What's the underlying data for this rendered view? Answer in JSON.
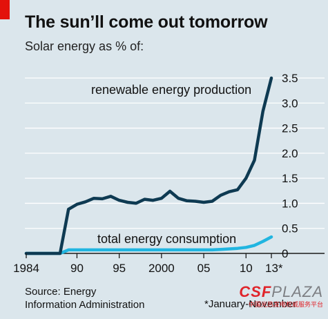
{
  "header": {
    "title": "The sun’ll come out tomorrow",
    "subtitle": "Solar energy as % of:"
  },
  "source": {
    "line1": "Source: Energy",
    "line2": "Information Administration"
  },
  "footnote": "*January-November",
  "watermark": {
    "logo_main": "CSF",
    "logo_second": "PLAZA",
    "subtext": "中国光热发电权威服务平台"
  },
  "colors": {
    "background": "#dbe6ec",
    "renewable_line": "#0e3a52",
    "consumption_line": "#21b5e0",
    "grid": "#ffffff",
    "accent": "#e3120b"
  },
  "chart_data": {
    "type": "line",
    "title": "The sun’ll come out tomorrow",
    "subtitle": "Solar energy as % of:",
    "xlabel": "",
    "ylabel": "",
    "xlim": [
      1984,
      2013
    ],
    "ylim": [
      0,
      3.5
    ],
    "x_ticks": [
      1984,
      1990,
      1995,
      2000,
      2005,
      2010,
      2013
    ],
    "x_tick_labels": [
      "1984",
      "90",
      "95",
      "2000",
      "05",
      "10",
      "13*"
    ],
    "y_ticks": [
      0,
      0.5,
      1.0,
      1.5,
      2.0,
      2.5,
      3.0,
      3.5
    ],
    "y_tick_labels": [
      "0",
      "0.5",
      "1.0",
      "1.5",
      "2.0",
      "2.5",
      "3.0",
      "3.5"
    ],
    "grid": "horizontal",
    "x": [
      1984,
      1985,
      1986,
      1987,
      1988,
      1989,
      1990,
      1991,
      1992,
      1993,
      1994,
      1995,
      1996,
      1997,
      1998,
      1999,
      2000,
      2001,
      2002,
      2003,
      2004,
      2005,
      2006,
      2007,
      2008,
      2009,
      2010,
      2011,
      2012,
      2013
    ],
    "series": [
      {
        "name": "renewable energy production",
        "values": [
          0.0,
          0.0,
          0.0,
          0.0,
          0.0,
          0.88,
          0.98,
          1.03,
          1.1,
          1.09,
          1.14,
          1.06,
          1.02,
          1.0,
          1.08,
          1.06,
          1.1,
          1.24,
          1.1,
          1.05,
          1.04,
          1.02,
          1.04,
          1.16,
          1.23,
          1.27,
          1.5,
          1.86,
          2.84,
          3.5
        ]
      },
      {
        "name": "total energy consumption",
        "values": [
          0.0,
          0.0,
          0.0,
          0.0,
          0.0,
          0.07,
          0.07,
          0.07,
          0.07,
          0.07,
          0.07,
          0.07,
          0.07,
          0.07,
          0.07,
          0.07,
          0.07,
          0.07,
          0.07,
          0.07,
          0.07,
          0.07,
          0.07,
          0.08,
          0.09,
          0.1,
          0.12,
          0.16,
          0.24,
          0.33
        ]
      }
    ]
  }
}
